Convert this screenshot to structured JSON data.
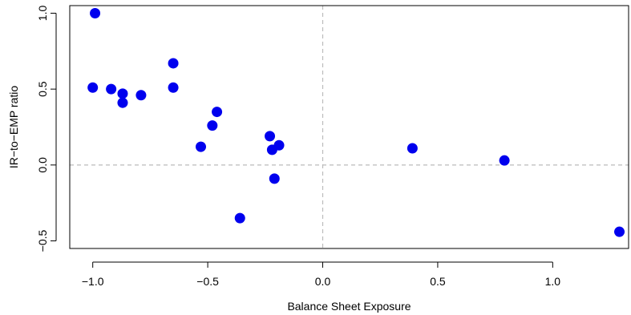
{
  "chart_data": {
    "type": "scatter",
    "title": "",
    "xlabel": "Balance Sheet Exposure",
    "ylabel": "IR−to−EMP ratio",
    "xlim": [
      -1.1,
      1.33
    ],
    "ylim": [
      -0.55,
      1.05
    ],
    "x_ticks": [
      -1.0,
      -0.5,
      0.0,
      0.5,
      1.0
    ],
    "x_tick_labels": [
      "−1.0",
      "−0.5",
      "0.0",
      "0.5",
      "1.0"
    ],
    "y_ticks": [
      -0.5,
      0.0,
      0.5,
      1.0
    ],
    "y_tick_labels": [
      "−0.5",
      "0.0",
      "0.5",
      "1.0"
    ],
    "reference_lines": {
      "x": 0.0,
      "y": 0.0,
      "style": "dashed",
      "color": "#bbbbbb"
    },
    "grid": false,
    "marker_color": "#0000ee",
    "points": [
      {
        "x": -0.99,
        "y": 1.0
      },
      {
        "x": -1.0,
        "y": 0.51
      },
      {
        "x": -0.92,
        "y": 0.5
      },
      {
        "x": -0.87,
        "y": 0.47
      },
      {
        "x": -0.87,
        "y": 0.41
      },
      {
        "x": -0.79,
        "y": 0.46
      },
      {
        "x": -0.65,
        "y": 0.67
      },
      {
        "x": -0.65,
        "y": 0.51
      },
      {
        "x": -0.53,
        "y": 0.12
      },
      {
        "x": -0.48,
        "y": 0.26
      },
      {
        "x": -0.46,
        "y": 0.35
      },
      {
        "x": -0.36,
        "y": -0.35
      },
      {
        "x": -0.23,
        "y": 0.19
      },
      {
        "x": -0.22,
        "y": 0.1
      },
      {
        "x": -0.21,
        "y": -0.09
      },
      {
        "x": -0.19,
        "y": 0.13
      },
      {
        "x": 0.39,
        "y": 0.11
      },
      {
        "x": 0.79,
        "y": 0.03
      },
      {
        "x": 1.29,
        "y": -0.44
      }
    ]
  }
}
